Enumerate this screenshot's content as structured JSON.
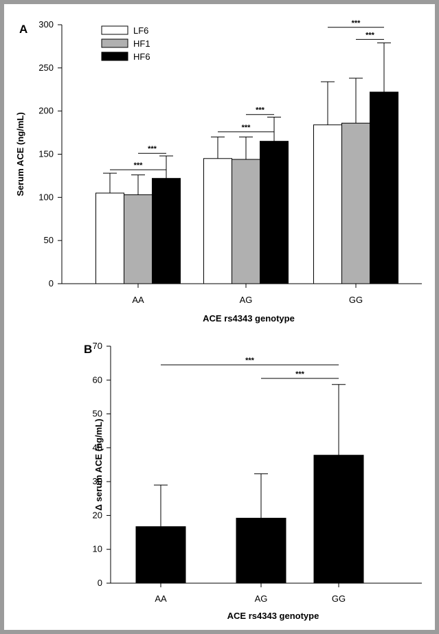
{
  "chart_data": [
    {
      "panel_label": "A",
      "type": "bar",
      "categories": [
        "AA",
        "AG",
        "GG"
      ],
      "series": [
        {
          "name": "LF6",
          "values": [
            105,
            145,
            184
          ],
          "errors": [
            23,
            25,
            50
          ],
          "color": "#ffffff"
        },
        {
          "name": "HF1",
          "values": [
            103,
            144,
            186
          ],
          "errors": [
            23,
            26,
            52
          ],
          "color": "#b0b0b0"
        },
        {
          "name": "HF6",
          "values": [
            122,
            165,
            222
          ],
          "errors": [
            26,
            28,
            57
          ],
          "color": "#000000"
        }
      ],
      "xlabel": "ACE rs4343 genotype",
      "ylabel": "Serum ACE (ng/mL)",
      "ylim": [
        0,
        300
      ],
      "yticks": [
        0,
        50,
        100,
        150,
        200,
        250,
        300
      ],
      "grid": false,
      "legend_position": "top-left",
      "significance": [
        {
          "category": 0,
          "from": "LF6",
          "to": "HF6",
          "y": 132,
          "label": "***"
        },
        {
          "category": 0,
          "from": "HF1",
          "to": "HF6",
          "y": 151,
          "label": "***"
        },
        {
          "category": 1,
          "from": "LF6",
          "to": "HF6",
          "y": 176,
          "label": "***"
        },
        {
          "category": 1,
          "from": "HF1",
          "to": "HF6",
          "y": 196,
          "label": "***"
        },
        {
          "category": 2,
          "from": "LF6",
          "to": "HF6",
          "y": 297,
          "label": "***"
        },
        {
          "category": 2,
          "from": "HF1",
          "to": "HF6",
          "y": 283,
          "label": "***"
        }
      ]
    },
    {
      "panel_label": "B",
      "type": "bar",
      "categories": [
        "AA",
        "AG",
        "GG"
      ],
      "values": [
        16.7,
        19.2,
        37.8
      ],
      "errors": [
        12.3,
        13.1,
        20.9
      ],
      "color": "#000000",
      "xlabel": "ACE rs4343 genotype",
      "ylabel": "Δ serum ACE (ng/mL)",
      "ylim": [
        0,
        70
      ],
      "yticks": [
        0,
        10,
        20,
        30,
        40,
        50,
        60,
        70
      ],
      "grid": false,
      "significance": [
        {
          "from": "AA",
          "to": "GG",
          "y": 64.5,
          "label": "***"
        },
        {
          "from": "AG",
          "to": "GG",
          "y": 60.5,
          "label": "***"
        }
      ]
    }
  ]
}
